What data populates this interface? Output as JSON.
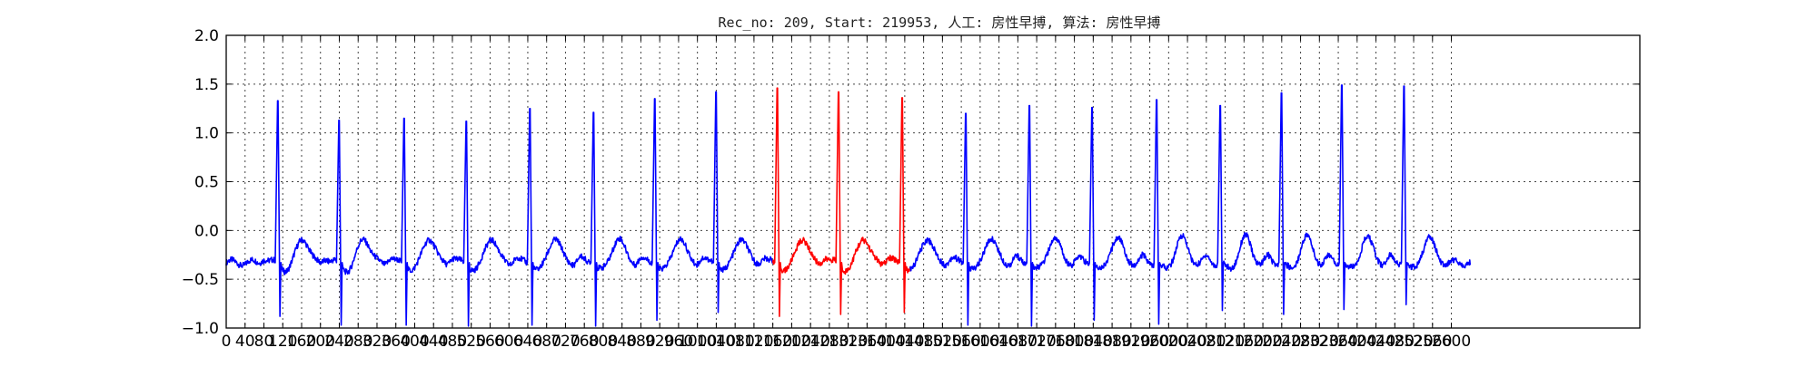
{
  "chart_data": {
    "type": "line",
    "title": "Rec_no: 209, Start: 219953, 人工: 房性早搏, 算法: 房性早搏",
    "xlabel": "",
    "ylabel": "",
    "xlim": [
      0,
      3000
    ],
    "ylim": [
      -1.0,
      2.0
    ],
    "grid": true,
    "x_ticks": [
      0,
      40,
      80,
      120,
      160,
      200,
      240,
      280,
      320,
      360,
      400,
      440,
      480,
      520,
      560,
      600,
      640,
      680,
      720,
      760,
      800,
      840,
      880,
      920,
      960,
      1000,
      1040,
      1080,
      1120,
      1160,
      1200,
      1240,
      1280,
      1320,
      1360,
      1400,
      1440,
      1480,
      1520,
      1560,
      1600,
      1640,
      1680,
      1720,
      1760,
      1800,
      1840,
      1880,
      1920,
      1960,
      2000,
      2040,
      2080,
      2120,
      2160,
      2200,
      2240,
      2280,
      2320,
      2360,
      2400,
      2440,
      2480,
      2520,
      2560,
      2600
    ],
    "y_ticks": [
      -1.0,
      -0.5,
      0.0,
      0.5,
      1.0,
      1.5,
      2.0
    ],
    "y_tick_labels": [
      "−1.0",
      "−0.5",
      "0.0",
      "0.5",
      "1.0",
      "1.5",
      "2.0"
    ],
    "baseline": -0.33,
    "x_end": 2640,
    "colors": {
      "normal": "#0000ff",
      "highlight": "#ff0000",
      "grid": "#444444"
    },
    "highlight_range": [
      1160,
      1450
    ],
    "beats": [
      {
        "x": 110,
        "peak": 1.33,
        "trough": -0.88
      },
      {
        "x": 240,
        "peak": 1.13,
        "trough": -0.97
      },
      {
        "x": 378,
        "peak": 1.15,
        "trough": -0.97
      },
      {
        "x": 510,
        "peak": 1.12,
        "trough": -0.98
      },
      {
        "x": 645,
        "peak": 1.25,
        "trough": -0.97
      },
      {
        "x": 780,
        "peak": 1.21,
        "trough": -0.98
      },
      {
        "x": 910,
        "peak": 1.35,
        "trough": -0.92
      },
      {
        "x": 1040,
        "peak": 1.42,
        "trough": -0.84
      },
      {
        "x": 1170,
        "peak": 1.46,
        "trough": -0.88
      },
      {
        "x": 1300,
        "peak": 1.42,
        "trough": -0.86
      },
      {
        "x": 1435,
        "peak": 1.36,
        "trough": -0.84
      },
      {
        "x": 1570,
        "peak": 1.2,
        "trough": -0.97
      },
      {
        "x": 1705,
        "peak": 1.28,
        "trough": -0.98
      },
      {
        "x": 1838,
        "peak": 1.26,
        "trough": -0.92
      },
      {
        "x": 1975,
        "peak": 1.34,
        "trough": -0.96
      },
      {
        "x": 2110,
        "peak": 1.28,
        "trough": -0.82
      },
      {
        "x": 2240,
        "peak": 1.41,
        "trough": -0.86
      },
      {
        "x": 2368,
        "peak": 1.49,
        "trough": -0.81
      },
      {
        "x": 2500,
        "peak": 1.48,
        "trough": -0.76
      }
    ]
  }
}
